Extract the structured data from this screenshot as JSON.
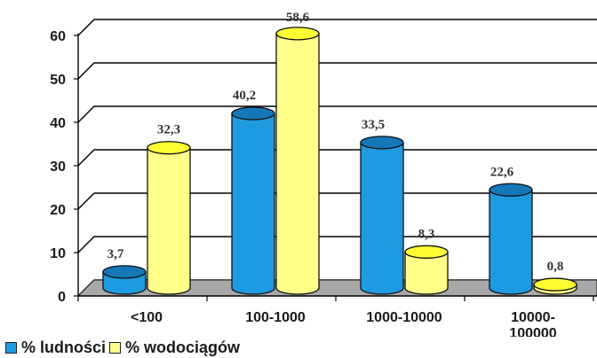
{
  "chart_data": {
    "type": "bar",
    "categories": [
      [
        "<100"
      ],
      [
        "100-1000"
      ],
      [
        "1000-10000"
      ],
      [
        "10000-",
        "100000"
      ]
    ],
    "series": [
      {
        "name": "% ludności",
        "values": [
          3.7,
          40.2,
          33.5,
          22.6
        ],
        "labels": [
          "3,7",
          "40,2",
          "33,5",
          "22,6"
        ]
      },
      {
        "name": "% wodociągów",
        "values": [
          32.3,
          58.6,
          8.3,
          0.8
        ],
        "labels": [
          "32,3",
          "58,6",
          "8,3",
          "0,8"
        ]
      }
    ],
    "ylim": [
      0,
      60
    ],
    "yticks": [
      0,
      10,
      20,
      30,
      40,
      50,
      60
    ],
    "grid": true,
    "legend_position": "bottom-left",
    "colors": {
      "series1_body": "#1E9AE0",
      "series1_top": "#1477B8",
      "series2_body": "#FFFF8A",
      "series2_top": "#FFFF33",
      "floor": "#A8A8A8"
    }
  }
}
